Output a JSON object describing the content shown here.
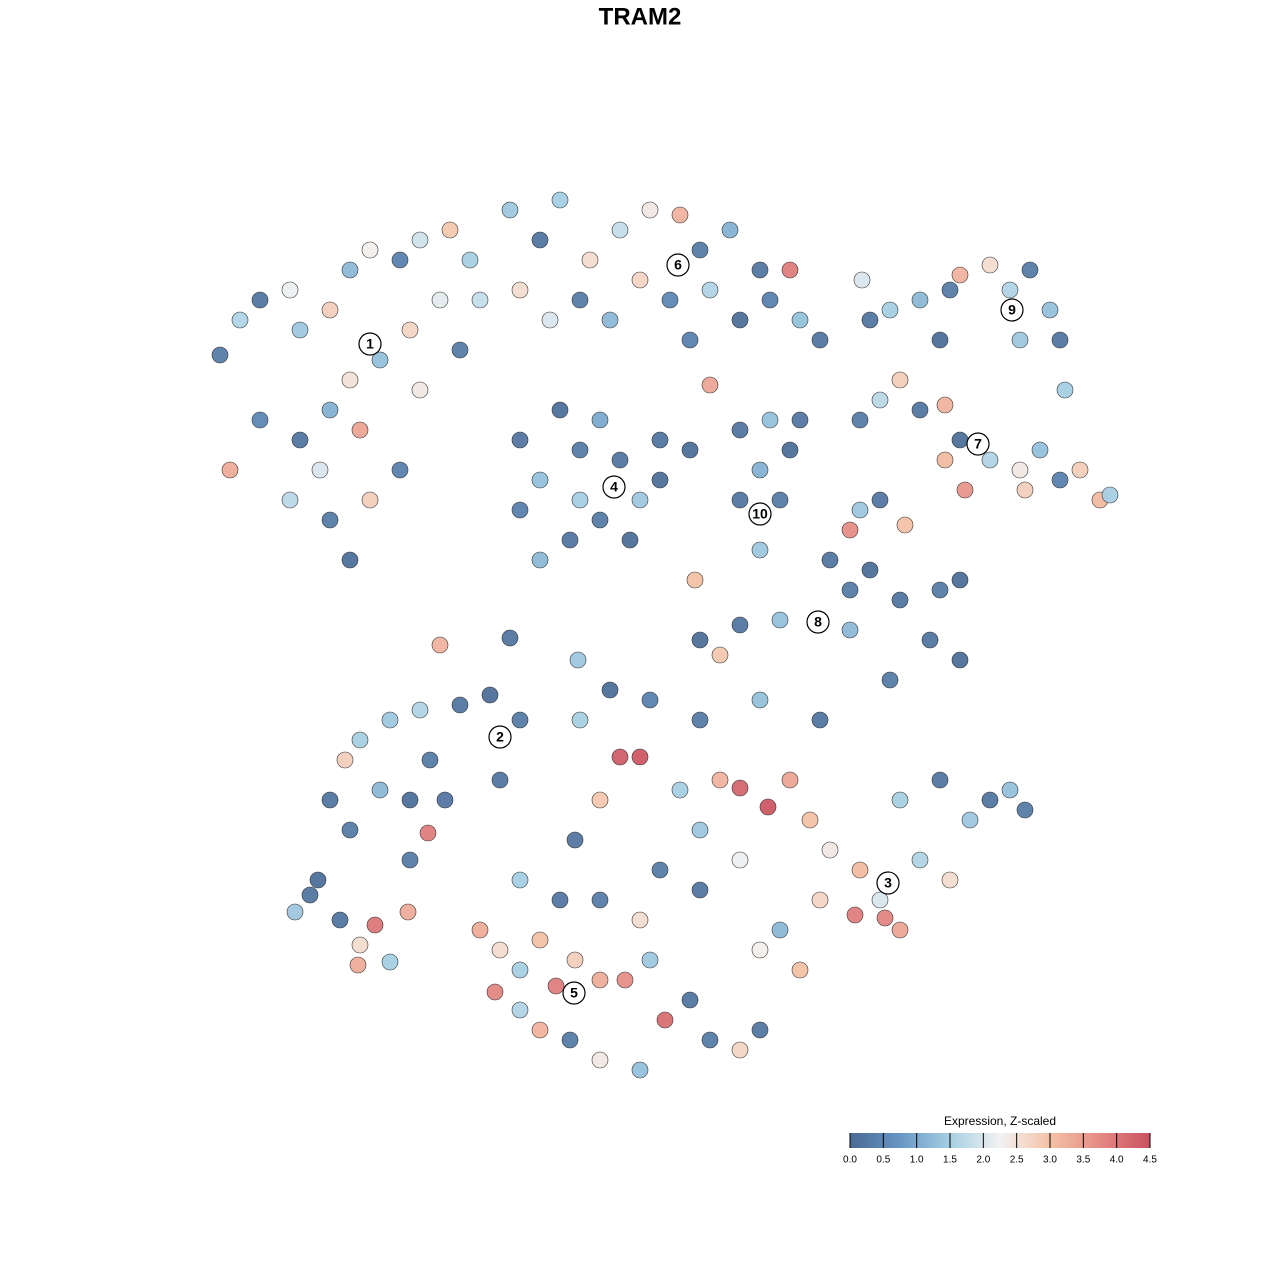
{
  "chart_data": {
    "type": "scatter",
    "title": "TRAM2",
    "xlim": [
      0,
      1280
    ],
    "ylim": [
      1280,
      0
    ],
    "x": [
      220,
      240,
      260,
      290,
      300,
      330,
      350,
      370,
      400,
      420,
      450,
      470,
      440,
      410,
      380,
      350,
      330,
      300,
      320,
      290,
      330,
      350,
      370,
      400,
      230,
      260,
      360,
      420,
      460,
      480,
      510,
      540,
      560,
      590,
      620,
      650,
      680,
      700,
      730,
      760,
      790,
      770,
      740,
      710,
      670,
      640,
      610,
      580,
      550,
      520,
      800,
      820,
      690,
      710,
      520,
      540,
      560,
      580,
      600,
      620,
      640,
      660,
      600,
      570,
      540,
      520,
      580,
      630,
      660,
      690,
      740,
      770,
      790,
      760,
      780,
      740,
      760,
      800,
      870,
      890,
      920,
      950,
      960,
      990,
      1010,
      1030,
      1050,
      1060,
      1065,
      940,
      1020,
      862,
      860,
      880,
      900,
      920,
      945,
      960,
      990,
      1020,
      1040,
      1060,
      1080,
      1100,
      1110,
      1025,
      965,
      945,
      860,
      880,
      905,
      850,
      830,
      850,
      870,
      900,
      940,
      960,
      930,
      960,
      890,
      850,
      780,
      740,
      700,
      720,
      695,
      440,
      510,
      578,
      330,
      350,
      380,
      410,
      430,
      390,
      420,
      460,
      490,
      520,
      500,
      345,
      360,
      428,
      410,
      445,
      620,
      640,
      680,
      720,
      740,
      768,
      790,
      810,
      830,
      860,
      880,
      900,
      920,
      950,
      970,
      990,
      1010,
      1025,
      940,
      900,
      855,
      885,
      780,
      800,
      760,
      700,
      660,
      740,
      820,
      600,
      575,
      650,
      610,
      580,
      700,
      760,
      820,
      480,
      495,
      500,
      520,
      540,
      556,
      575,
      600,
      625,
      650,
      665,
      690,
      710,
      740,
      760,
      640,
      600,
      570,
      540,
      520,
      560,
      600,
      640,
      700,
      520,
      295,
      310,
      340,
      360,
      375,
      390,
      408,
      318,
      358
    ],
    "y": [
      355,
      320,
      300,
      290,
      330,
      310,
      270,
      250,
      260,
      240,
      230,
      260,
      300,
      330,
      360,
      380,
      410,
      440,
      470,
      500,
      520,
      560,
      500,
      470,
      470,
      420,
      430,
      390,
      350,
      300,
      210,
      240,
      200,
      260,
      230,
      210,
      215,
      250,
      230,
      270,
      270,
      300,
      320,
      290,
      300,
      280,
      320,
      300,
      320,
      290,
      320,
      340,
      340,
      385,
      440,
      480,
      410,
      450,
      420,
      460,
      500,
      480,
      520,
      540,
      560,
      510,
      500,
      540,
      440,
      450,
      430,
      420,
      450,
      470,
      500,
      500,
      550,
      420,
      320,
      310,
      300,
      290,
      275,
      265,
      290,
      270,
      310,
      340,
      390,
      340,
      340,
      280,
      420,
      400,
      380,
      410,
      405,
      440,
      460,
      470,
      450,
      480,
      470,
      500,
      495,
      490,
      490,
      460,
      510,
      500,
      525,
      530,
      560,
      590,
      570,
      600,
      590,
      580,
      640,
      660,
      680,
      630,
      620,
      625,
      640,
      655,
      580,
      645,
      638,
      660,
      800,
      830,
      790,
      800,
      760,
      720,
      710,
      705,
      695,
      720,
      780,
      760,
      740,
      833,
      860,
      800,
      757,
      757,
      790,
      780,
      788,
      807,
      780,
      820,
      850,
      870,
      900,
      930,
      860,
      880,
      820,
      800,
      790,
      810,
      780,
      800,
      915,
      918,
      930,
      970,
      950,
      830,
      870,
      860,
      900,
      800,
      840,
      700,
      690,
      720,
      720,
      700,
      720,
      930,
      992,
      950,
      970,
      940,
      986,
      960,
      980,
      980,
      960,
      1020,
      1000,
      1040,
      1050,
      1030,
      1070,
      1060,
      1040,
      1030,
      1010,
      900,
      900,
      920,
      890,
      880,
      912,
      895,
      920,
      945,
      925,
      962,
      912,
      880,
      965
    ],
    "values": [
      0.3,
      1.6,
      0.2,
      2.2,
      1.4,
      2.8,
      1.2,
      2.3,
      0.4,
      1.9,
      2.9,
      1.5,
      2.1,
      2.7,
      1.3,
      2.5,
      1.1,
      0.2,
      2.0,
      1.7,
      0.3,
      0.1,
      2.8,
      0.4,
      3.3,
      0.5,
      3.4,
      2.4,
      0.3,
      1.8,
      1.4,
      0.2,
      1.5,
      2.6,
      1.8,
      2.4,
      3.2,
      0.3,
      1.1,
      0.2,
      3.9,
      0.4,
      0.1,
      1.6,
      0.5,
      2.7,
      1.2,
      0.3,
      2.0,
      2.6,
      1.3,
      0.2,
      0.4,
      3.4,
      0.2,
      1.3,
      0.1,
      0.3,
      1.0,
      0.2,
      1.4,
      0.1,
      0.3,
      0.2,
      1.2,
      0.4,
      1.5,
      0.1,
      0.2,
      0.1,
      0.2,
      1.3,
      0.1,
      1.1,
      0.3,
      0.2,
      1.4,
      0.2,
      0.2,
      1.5,
      1.2,
      0.3,
      3.2,
      2.6,
      1.6,
      0.3,
      1.3,
      0.2,
      1.5,
      0.1,
      1.4,
      2.0,
      0.3,
      1.7,
      2.8,
      0.2,
      3.2,
      0.1,
      1.6,
      2.4,
      1.3,
      0.4,
      2.8,
      3.1,
      1.5,
      2.8,
      3.6,
      3.1,
      1.4,
      0.2,
      3.0,
      3.7,
      0.2,
      0.3,
      0.1,
      0.2,
      0.3,
      0.1,
      0.2,
      0.1,
      0.3,
      1.2,
      1.3,
      0.2,
      0.1,
      2.9,
      3.0,
      3.2,
      0.2,
      1.4,
      0.2,
      0.3,
      1.2,
      0.1,
      0.3,
      1.4,
      1.6,
      0.2,
      0.1,
      0.3,
      0.2,
      2.8,
      1.5,
      3.9,
      0.3,
      0.2,
      4.3,
      4.4,
      1.5,
      3.2,
      4.2,
      4.4,
      3.4,
      3.0,
      2.4,
      3.1,
      2.0,
      3.4,
      1.6,
      2.6,
      1.4,
      0.2,
      1.3,
      0.3,
      0.2,
      1.5,
      3.9,
      3.8,
      1.2,
      3.0,
      2.3,
      1.4,
      0.3,
      2.2,
      2.7,
      2.9,
      0.2,
      0.4,
      0.1,
      1.5,
      0.3,
      1.3,
      0.2,
      3.3,
      3.8,
      2.6,
      1.5,
      3.0,
      3.9,
      2.8,
      3.3,
      3.7,
      1.4,
      4.1,
      0.2,
      0.3,
      2.7,
      0.2,
      1.3,
      2.4,
      0.3,
      3.2,
      1.6,
      0.2,
      0.3,
      2.6,
      0.2,
      1.5,
      1.4,
      0.2,
      0.2,
      2.6,
      4.0,
      1.5,
      3.3,
      0.1,
      3.3
    ],
    "cluster_labels": [
      {
        "label": "1",
        "x": 370,
        "y": 344
      },
      {
        "label": "2",
        "x": 500,
        "y": 737
      },
      {
        "label": "3",
        "x": 888,
        "y": 883
      },
      {
        "label": "4",
        "x": 614,
        "y": 487
      },
      {
        "label": "5",
        "x": 574,
        "y": 993
      },
      {
        "label": "6",
        "x": 678,
        "y": 265
      },
      {
        "label": "7",
        "x": 978,
        "y": 444
      },
      {
        "label": "8",
        "x": 818,
        "y": 622
      },
      {
        "label": "9",
        "x": 1012,
        "y": 310
      },
      {
        "label": "10",
        "x": 760,
        "y": 514
      }
    ],
    "colorbar": {
      "title": "Expression, Z-scaled",
      "lim": [
        0,
        4.5
      ],
      "colors": [
        "#4a6a94",
        "#6796c4",
        "#a6cfe3",
        "#f2f2f2",
        "#f4c2a6",
        "#e58a84",
        "#c9505f"
      ],
      "ticks": [
        {
          "value": 0,
          "label": "0.0"
        },
        0.5,
        {
          "value": 1,
          "label": "1.0"
        },
        1.5,
        {
          "value": 2,
          "label": "2.0"
        },
        2.5,
        {
          "value": 3,
          "label": "3.0"
        },
        3.5,
        {
          "value": 4,
          "label": "4.0"
        },
        4.5
      ]
    }
  }
}
